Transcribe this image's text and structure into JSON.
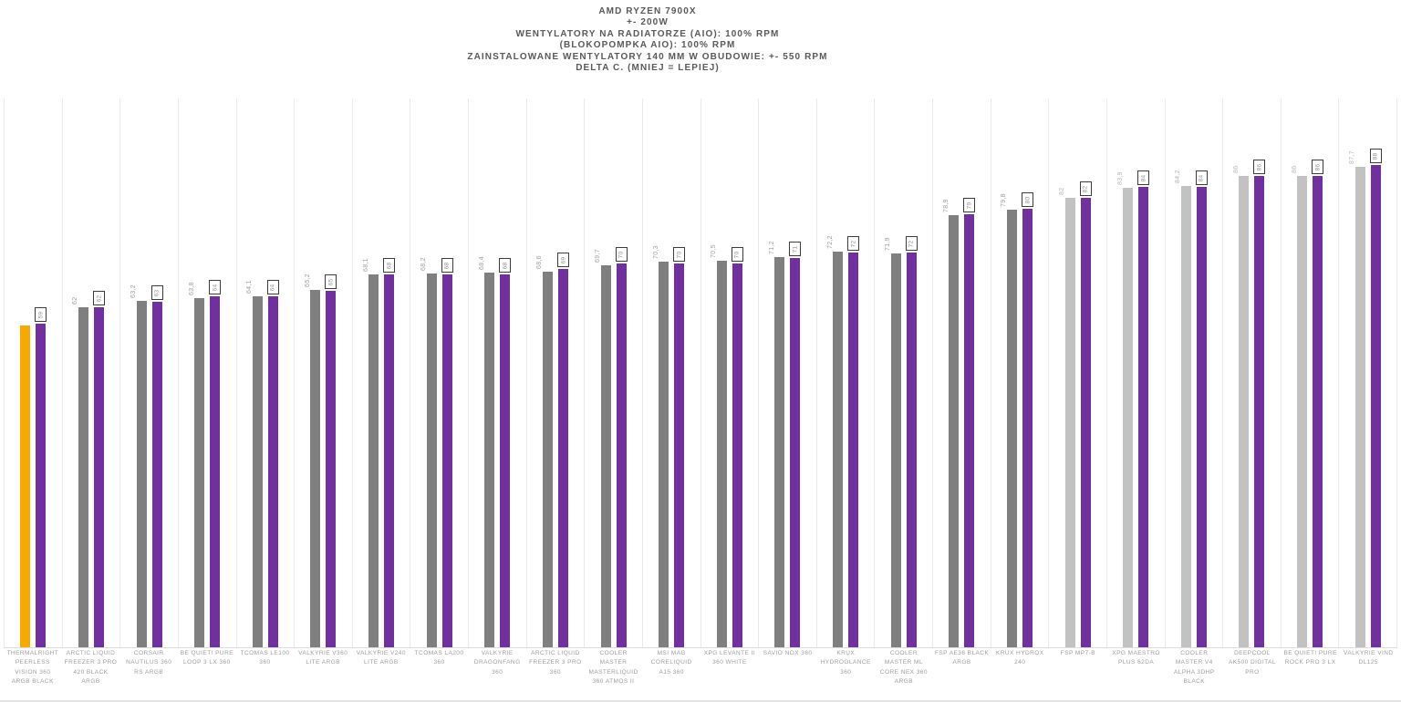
{
  "colors": {
    "highlight": "#F8A900",
    "aio_gray": "#7F7F7F",
    "air_gray": "#C2C2C2",
    "secondary_purple": "#7030A0",
    "grid_line": "#EAEAEA",
    "axis_line": "#DCDCDC",
    "title_text": "#595959",
    "value_text": "#9C9C9C",
    "badge_border": "#3C3C3C"
  },
  "chart_data": {
    "type": "bar",
    "title_lines": [
      "AMD RYZEN 7900X",
      "+- 200W",
      "WENTYLATORY NA RADIATORZE (AIO): 100% RPM",
      "(BLOKOPOMPKA AIO): 100% RPM",
      "ZAINSTALOWANE WENTYLATORY 140 MM W OBUDOWIE: +- 550 RPM",
      "DELTA C. (MNIEJ = LEPIEJ)"
    ],
    "xlabel": "",
    "ylabel": "",
    "ylim": [
      0,
      100
    ],
    "grid": "vertical-column-separators-only",
    "legend": "none",
    "bar_roles": {
      "primary": "delta temperature C (gray = AIO, light gray = air cooler, orange = highlighted product)",
      "secondary": "rounded delta temperature C shown in framed badge (purple bars)"
    },
    "items": [
      {
        "category": "THERMALRIGHT PEERLESS VISION 360 ARGB BLACK",
        "primary_value": 58.7,
        "primary_label": "",
        "primary_style": "highlight",
        "secondary_value": 59,
        "secondary_label": "59"
      },
      {
        "category": "ARCTIC LIQUID FREEZER 3 PRO 420 BLACK ARGB",
        "primary_value": 62,
        "primary_label": "62",
        "primary_style": "aio",
        "secondary_value": 62,
        "secondary_label": "62"
      },
      {
        "category": "CORSAIR NAUTILUS 360 RS ARGB",
        "primary_value": 63.2,
        "primary_label": "63,2",
        "primary_style": "aio",
        "secondary_value": 63,
        "secondary_label": "63"
      },
      {
        "category": "BE QUIET! PURE LOOP 3 LX 360",
        "primary_value": 63.8,
        "primary_label": "63,8",
        "primary_style": "aio",
        "secondary_value": 64,
        "secondary_label": "64"
      },
      {
        "category": "TCOMAS LE100 360",
        "primary_value": 64.1,
        "primary_label": "64,1",
        "primary_style": "aio",
        "secondary_value": 64,
        "secondary_label": "64"
      },
      {
        "category": "VALKYRIE V360 LITE ARGB",
        "primary_value": 65.2,
        "primary_label": "65,2",
        "primary_style": "aio",
        "secondary_value": 65,
        "secondary_label": "65"
      },
      {
        "category": "VALKYRIE V240 LITE ARGB",
        "primary_value": 68.1,
        "primary_label": "68,1",
        "primary_style": "aio",
        "secondary_value": 68,
        "secondary_label": "68"
      },
      {
        "category": "TCOMAS LA200 360",
        "primary_value": 68.2,
        "primary_label": "68,2",
        "primary_style": "aio",
        "secondary_value": 68,
        "secondary_label": "68"
      },
      {
        "category": "VALKYRIE DRAGONFANG 360",
        "primary_value": 68.4,
        "primary_label": "68,4",
        "primary_style": "aio",
        "secondary_value": 68,
        "secondary_label": "68"
      },
      {
        "category": "ARCTIC LIQUID FREEZER 3 PRO 360",
        "primary_value": 68.6,
        "primary_label": "68,6",
        "primary_style": "aio",
        "secondary_value": 69,
        "secondary_label": "69"
      },
      {
        "category": "COOLER MASTER MASTERLIQUID 360 ATMOS II",
        "primary_value": 69.7,
        "primary_label": "69,7",
        "primary_style": "aio",
        "secondary_value": 70,
        "secondary_label": "70"
      },
      {
        "category": "MSI MAG CORELIQUID A15 360",
        "primary_value": 70.3,
        "primary_label": "70,3",
        "primary_style": "aio",
        "secondary_value": 70,
        "secondary_label": "70"
      },
      {
        "category": "XPG LEVANTE II 360 WHITE",
        "primary_value": 70.5,
        "primary_label": "70,5",
        "primary_style": "aio",
        "secondary_value": 70,
        "secondary_label": "70"
      },
      {
        "category": "SAVIO NOX 360",
        "primary_value": 71.2,
        "primary_label": "71,2",
        "primary_style": "aio",
        "secondary_value": 71,
        "secondary_label": "71"
      },
      {
        "category": "KRUX HYDROGLANCE 360",
        "primary_value": 72.2,
        "primary_label": "72,2",
        "primary_style": "aio",
        "secondary_value": 72,
        "secondary_label": "72"
      },
      {
        "category": "COOLER MASTER ML CORE NEX 360 ARGB",
        "primary_value": 71.9,
        "primary_label": "71,9",
        "primary_style": "aio",
        "secondary_value": 72,
        "secondary_label": "72"
      },
      {
        "category": "FSP AE36 BLACK ARGB",
        "primary_value": 78.9,
        "primary_label": "78,9",
        "primary_style": "aio",
        "secondary_value": 79,
        "secondary_label": "79"
      },
      {
        "category": "KRUX HYDROX 240",
        "primary_value": 79.8,
        "primary_label": "79,8",
        "primary_style": "aio",
        "secondary_value": 80,
        "secondary_label": "80"
      },
      {
        "category": "FSP MP7-B",
        "primary_value": 82,
        "primary_label": "82",
        "primary_style": "air",
        "secondary_value": 82,
        "secondary_label": "82"
      },
      {
        "category": "XPG MAESTRO PLUS 62DA",
        "primary_value": 83.9,
        "primary_label": "83,9",
        "primary_style": "air",
        "secondary_value": 84,
        "secondary_label": "84"
      },
      {
        "category": "COOLER MASTER V4 ALPHA 3DHP BLACK",
        "primary_value": 84.2,
        "primary_label": "84,2",
        "primary_style": "air",
        "secondary_value": 84,
        "secondary_label": "84"
      },
      {
        "category": "DEEPCOOL AK500 DIGITAL PRO",
        "primary_value": 86,
        "primary_label": "86",
        "primary_style": "air",
        "secondary_value": 86,
        "secondary_label": "86"
      },
      {
        "category": "BE QUIET! PURE ROCK PRO 3 LX",
        "primary_value": 86,
        "primary_label": "86",
        "primary_style": "air",
        "secondary_value": 86,
        "secondary_label": "86"
      },
      {
        "category": "VALKYRIE VIND DL125",
        "primary_value": 87.7,
        "primary_label": "87,7",
        "primary_style": "air",
        "secondary_value": 88,
        "secondary_label": "88"
      }
    ]
  }
}
